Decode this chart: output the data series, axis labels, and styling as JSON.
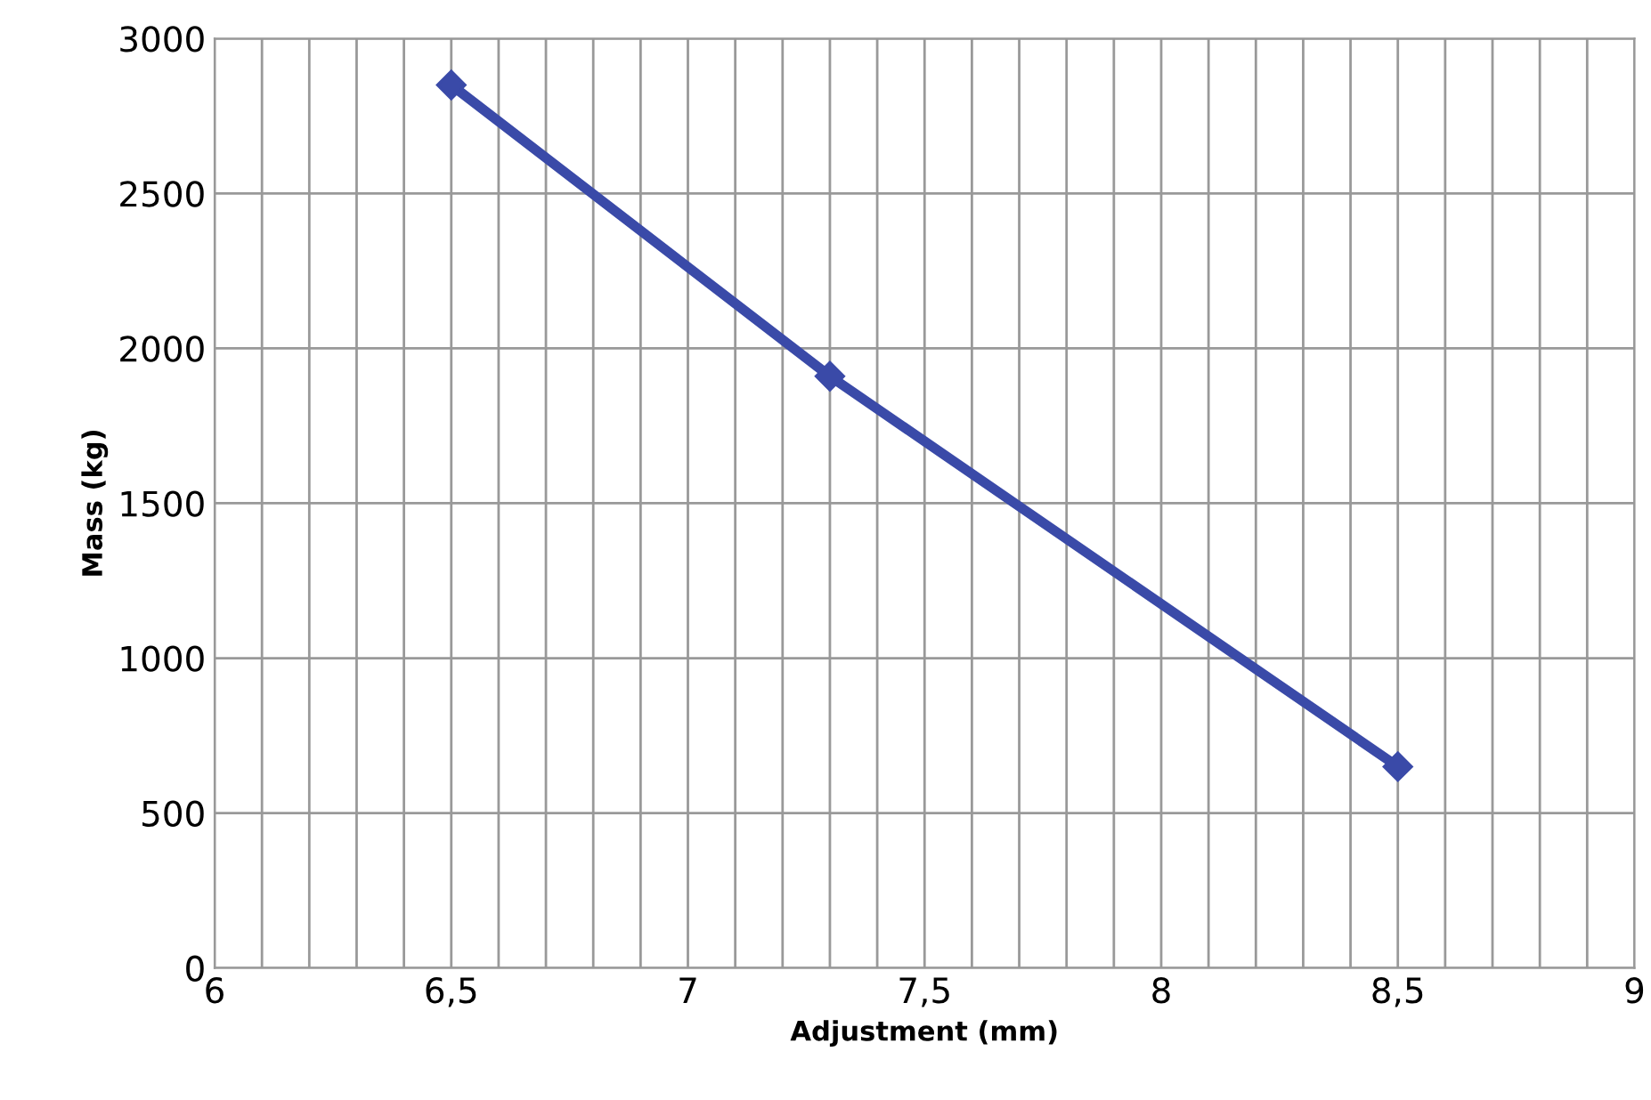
{
  "chart_data": {
    "type": "line",
    "xlabel": "Adjustment (mm)",
    "ylabel": "Mass (kg)",
    "x": [
      6.5,
      7.3,
      8.5
    ],
    "series": [
      {
        "color": "#3a4aa8",
        "values": [
          2850,
          1910,
          650
        ]
      }
    ],
    "xlim": [
      6,
      9
    ],
    "xticks": [
      6,
      {
        "value": 6.1,
        "label": null
      },
      {
        "value": 6.2,
        "label": null
      },
      {
        "value": 6.3,
        "label": null
      },
      {
        "value": 6.4,
        "label": null
      },
      {
        "value": 6.5,
        "label": "6,5"
      },
      {
        "value": 6.6,
        "label": null
      },
      {
        "value": 6.7,
        "label": null
      },
      {
        "value": 6.8,
        "label": null
      },
      {
        "value": 6.9,
        "label": null
      },
      7,
      {
        "value": 7.1,
        "label": null
      },
      {
        "value": 7.2,
        "label": null
      },
      {
        "value": 7.3,
        "label": null
      },
      {
        "value": 7.4,
        "label": null
      },
      {
        "value": 7.5,
        "label": "7,5"
      },
      {
        "value": 7.6,
        "label": null
      },
      {
        "value": 7.7,
        "label": null
      },
      {
        "value": 7.8,
        "label": null
      },
      {
        "value": 7.9,
        "label": null
      },
      8,
      {
        "value": 8.1,
        "label": null
      },
      {
        "value": 8.2,
        "label": null
      },
      {
        "value": 8.3,
        "label": null
      },
      {
        "value": 8.4,
        "label": null
      },
      {
        "value": 8.5,
        "label": "8,5"
      },
      {
        "value": 8.6,
        "label": null
      },
      {
        "value": 8.7,
        "label": null
      },
      {
        "value": 8.8,
        "label": null
      },
      {
        "value": 8.9,
        "label": null
      },
      9
    ],
    "ylim": [
      0,
      3000
    ],
    "yticks": [
      0,
      500,
      1000,
      1500,
      2000,
      2500,
      3000
    ],
    "grid": true,
    "marker": "diamond",
    "line_style": "solid"
  }
}
